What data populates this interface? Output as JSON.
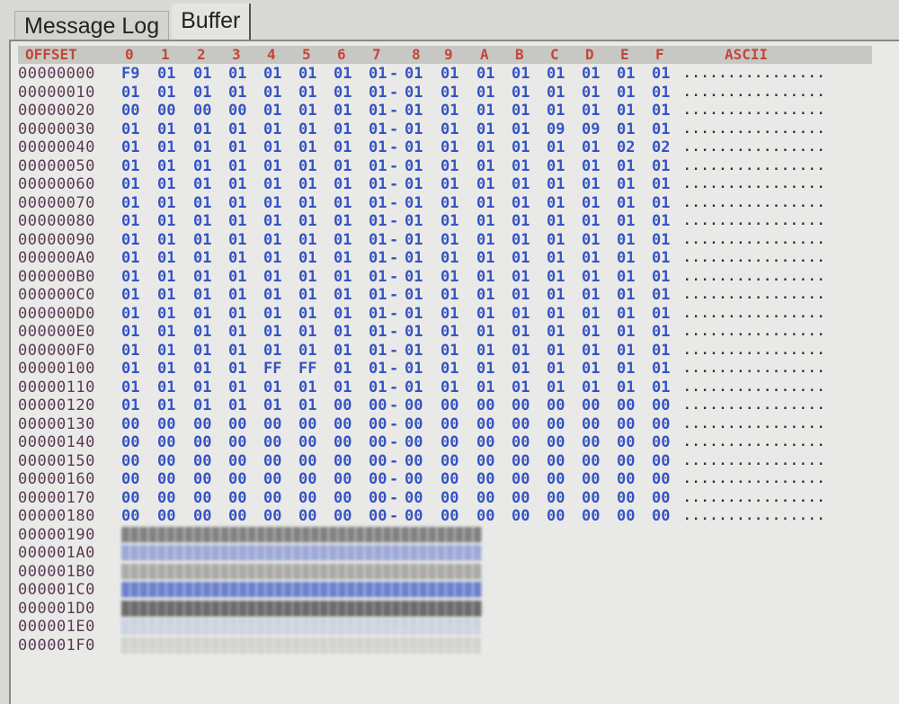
{
  "tabs": [
    {
      "label": "Message Log",
      "active": false
    },
    {
      "label": "Buffer",
      "active": true
    }
  ],
  "header": {
    "offset": "OFFSET",
    "columns": [
      "0",
      "1",
      "2",
      "3",
      "4",
      "5",
      "6",
      "7",
      "8",
      "9",
      "A",
      "B",
      "C",
      "D",
      "E",
      "F"
    ],
    "ascii": "ASCII"
  },
  "colors": {
    "offset_text": "#5a3a55",
    "byte_text": "#3653c4",
    "header_text": "#c2463a"
  },
  "rows": [
    {
      "offset": "00000000",
      "bytes": [
        "F9",
        "01",
        "01",
        "01",
        "01",
        "01",
        "01",
        "01",
        "01",
        "01",
        "01",
        "01",
        "01",
        "01",
        "01",
        "01"
      ],
      "ascii": "................"
    },
    {
      "offset": "00000010",
      "bytes": [
        "01",
        "01",
        "01",
        "01",
        "01",
        "01",
        "01",
        "01",
        "01",
        "01",
        "01",
        "01",
        "01",
        "01",
        "01",
        "01"
      ],
      "ascii": "................"
    },
    {
      "offset": "00000020",
      "bytes": [
        "00",
        "00",
        "00",
        "00",
        "01",
        "01",
        "01",
        "01",
        "01",
        "01",
        "01",
        "01",
        "01",
        "01",
        "01",
        "01"
      ],
      "ascii": "................"
    },
    {
      "offset": "00000030",
      "bytes": [
        "01",
        "01",
        "01",
        "01",
        "01",
        "01",
        "01",
        "01",
        "01",
        "01",
        "01",
        "01",
        "09",
        "09",
        "01",
        "01"
      ],
      "ascii": "................"
    },
    {
      "offset": "00000040",
      "bytes": [
        "01",
        "01",
        "01",
        "01",
        "01",
        "01",
        "01",
        "01",
        "01",
        "01",
        "01",
        "01",
        "01",
        "01",
        "02",
        "02"
      ],
      "ascii": "................"
    },
    {
      "offset": "00000050",
      "bytes": [
        "01",
        "01",
        "01",
        "01",
        "01",
        "01",
        "01",
        "01",
        "01",
        "01",
        "01",
        "01",
        "01",
        "01",
        "01",
        "01"
      ],
      "ascii": "................"
    },
    {
      "offset": "00000060",
      "bytes": [
        "01",
        "01",
        "01",
        "01",
        "01",
        "01",
        "01",
        "01",
        "01",
        "01",
        "01",
        "01",
        "01",
        "01",
        "01",
        "01"
      ],
      "ascii": "................"
    },
    {
      "offset": "00000070",
      "bytes": [
        "01",
        "01",
        "01",
        "01",
        "01",
        "01",
        "01",
        "01",
        "01",
        "01",
        "01",
        "01",
        "01",
        "01",
        "01",
        "01"
      ],
      "ascii": "................"
    },
    {
      "offset": "00000080",
      "bytes": [
        "01",
        "01",
        "01",
        "01",
        "01",
        "01",
        "01",
        "01",
        "01",
        "01",
        "01",
        "01",
        "01",
        "01",
        "01",
        "01"
      ],
      "ascii": "................"
    },
    {
      "offset": "00000090",
      "bytes": [
        "01",
        "01",
        "01",
        "01",
        "01",
        "01",
        "01",
        "01",
        "01",
        "01",
        "01",
        "01",
        "01",
        "01",
        "01",
        "01"
      ],
      "ascii": "................"
    },
    {
      "offset": "000000A0",
      "bytes": [
        "01",
        "01",
        "01",
        "01",
        "01",
        "01",
        "01",
        "01",
        "01",
        "01",
        "01",
        "01",
        "01",
        "01",
        "01",
        "01"
      ],
      "ascii": "................"
    },
    {
      "offset": "000000B0",
      "bytes": [
        "01",
        "01",
        "01",
        "01",
        "01",
        "01",
        "01",
        "01",
        "01",
        "01",
        "01",
        "01",
        "01",
        "01",
        "01",
        "01"
      ],
      "ascii": "................"
    },
    {
      "offset": "000000C0",
      "bytes": [
        "01",
        "01",
        "01",
        "01",
        "01",
        "01",
        "01",
        "01",
        "01",
        "01",
        "01",
        "01",
        "01",
        "01",
        "01",
        "01"
      ],
      "ascii": "................"
    },
    {
      "offset": "000000D0",
      "bytes": [
        "01",
        "01",
        "01",
        "01",
        "01",
        "01",
        "01",
        "01",
        "01",
        "01",
        "01",
        "01",
        "01",
        "01",
        "01",
        "01"
      ],
      "ascii": "................"
    },
    {
      "offset": "000000E0",
      "bytes": [
        "01",
        "01",
        "01",
        "01",
        "01",
        "01",
        "01",
        "01",
        "01",
        "01",
        "01",
        "01",
        "01",
        "01",
        "01",
        "01"
      ],
      "ascii": "................"
    },
    {
      "offset": "000000F0",
      "bytes": [
        "01",
        "01",
        "01",
        "01",
        "01",
        "01",
        "01",
        "01",
        "01",
        "01",
        "01",
        "01",
        "01",
        "01",
        "01",
        "01"
      ],
      "ascii": "................"
    },
    {
      "offset": "00000100",
      "bytes": [
        "01",
        "01",
        "01",
        "01",
        "FF",
        "FF",
        "01",
        "01",
        "01",
        "01",
        "01",
        "01",
        "01",
        "01",
        "01",
        "01"
      ],
      "ascii": "................"
    },
    {
      "offset": "00000110",
      "bytes": [
        "01",
        "01",
        "01",
        "01",
        "01",
        "01",
        "01",
        "01",
        "01",
        "01",
        "01",
        "01",
        "01",
        "01",
        "01",
        "01"
      ],
      "ascii": "................"
    },
    {
      "offset": "00000120",
      "bytes": [
        "01",
        "01",
        "01",
        "01",
        "01",
        "01",
        "00",
        "00",
        "00",
        "00",
        "00",
        "00",
        "00",
        "00",
        "00",
        "00"
      ],
      "ascii": "................"
    },
    {
      "offset": "00000130",
      "bytes": [
        "00",
        "00",
        "00",
        "00",
        "00",
        "00",
        "00",
        "00",
        "00",
        "00",
        "00",
        "00",
        "00",
        "00",
        "00",
        "00"
      ],
      "ascii": "................"
    },
    {
      "offset": "00000140",
      "bytes": [
        "00",
        "00",
        "00",
        "00",
        "00",
        "00",
        "00",
        "00",
        "00",
        "00",
        "00",
        "00",
        "00",
        "00",
        "00",
        "00"
      ],
      "ascii": "................"
    },
    {
      "offset": "00000150",
      "bytes": [
        "00",
        "00",
        "00",
        "00",
        "00",
        "00",
        "00",
        "00",
        "00",
        "00",
        "00",
        "00",
        "00",
        "00",
        "00",
        "00"
      ],
      "ascii": "................"
    },
    {
      "offset": "00000160",
      "bytes": [
        "00",
        "00",
        "00",
        "00",
        "00",
        "00",
        "00",
        "00",
        "00",
        "00",
        "00",
        "00",
        "00",
        "00",
        "00",
        "00"
      ],
      "ascii": "................"
    },
    {
      "offset": "00000170",
      "bytes": [
        "00",
        "00",
        "00",
        "00",
        "00",
        "00",
        "00",
        "00",
        "00",
        "00",
        "00",
        "00",
        "00",
        "00",
        "00",
        "00"
      ],
      "ascii": "................"
    },
    {
      "offset": "00000180",
      "bytes": [
        "00",
        "00",
        "00",
        "00",
        "00",
        "00",
        "00",
        "00",
        "00",
        "00",
        "00",
        "00",
        "00",
        "00",
        "00",
        "00"
      ],
      "ascii": "................"
    },
    {
      "offset": "00000190",
      "bytes": null,
      "ascii": null
    },
    {
      "offset": "000001A0",
      "bytes": null,
      "ascii": null
    },
    {
      "offset": "000001B0",
      "bytes": null,
      "ascii": null
    },
    {
      "offset": "000001C0",
      "bytes": null,
      "ascii": null
    },
    {
      "offset": "000001D0",
      "bytes": null,
      "ascii": null
    },
    {
      "offset": "000001E0",
      "bytes": null,
      "ascii": null
    },
    {
      "offset": "000001F0",
      "bytes": null,
      "ascii": null
    }
  ]
}
